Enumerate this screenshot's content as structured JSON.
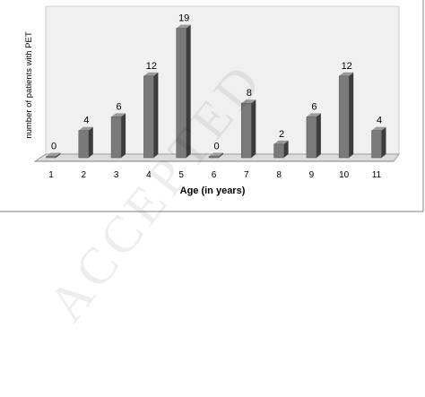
{
  "chart_data": {
    "type": "bar",
    "categories": [
      "1",
      "2",
      "3",
      "4",
      "5",
      "6",
      "7",
      "8",
      "9",
      "10",
      "11"
    ],
    "values": [
      0,
      4,
      6,
      12,
      19,
      0,
      8,
      2,
      6,
      12,
      4
    ],
    "data_labels": [
      "0",
      "4",
      "6",
      "12",
      "19",
      "0",
      "8",
      "2",
      "6",
      "12",
      "4"
    ],
    "title": "",
    "xlabel": "Age (in years)",
    "ylabel": "number of patients with PET",
    "ylim": [
      0,
      20
    ],
    "grid": false,
    "legend": "none",
    "style": "3d-column",
    "colors": {
      "bar_front": "#7a7a7a",
      "bar_side": "#3c3c3c",
      "bar_top": "#9a9a9a",
      "back_wall": "#eeeeee",
      "floor": "#d9d9d9"
    }
  },
  "watermark": "ACCEPTED"
}
